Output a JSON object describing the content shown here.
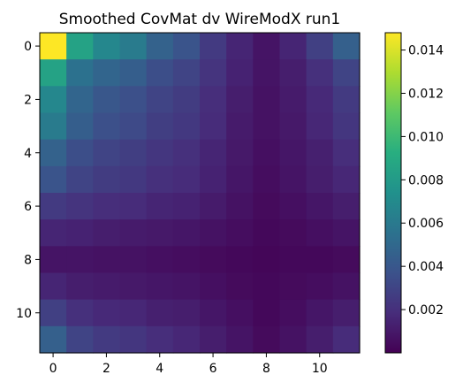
{
  "chart_data": {
    "type": "heatmap",
    "title": "Smoothed CovMat dv WireModX run1",
    "xlabel": "",
    "ylabel": "",
    "x_ticks": [
      "0",
      "2",
      "4",
      "6",
      "8",
      "10"
    ],
    "y_ticks": [
      "0",
      "2",
      "4",
      "6",
      "8",
      "10"
    ],
    "colorbar_ticks": [
      "0.002",
      "0.004",
      "0.006",
      "0.008",
      "0.010",
      "0.012",
      "0.014"
    ],
    "colorbar_range": [
      0.0,
      0.0148
    ],
    "colormap": "viridis",
    "grid": false,
    "rows": 12,
    "cols": 12,
    "values": [
      [
        0.0148,
        0.0085,
        0.0068,
        0.0061,
        0.0046,
        0.0038,
        0.0025,
        0.0015,
        0.0008,
        0.0015,
        0.0028,
        0.0045
      ],
      [
        0.0085,
        0.0055,
        0.0048,
        0.0044,
        0.0035,
        0.003,
        0.0022,
        0.0014,
        0.0008,
        0.0012,
        0.002,
        0.003
      ],
      [
        0.0068,
        0.0048,
        0.004,
        0.0036,
        0.003,
        0.0026,
        0.0019,
        0.0012,
        0.0007,
        0.0011,
        0.0017,
        0.0025
      ],
      [
        0.0061,
        0.0044,
        0.0036,
        0.0033,
        0.0027,
        0.0024,
        0.0018,
        0.0011,
        0.0007,
        0.001,
        0.0016,
        0.0023
      ],
      [
        0.0046,
        0.0035,
        0.003,
        0.0027,
        0.0023,
        0.002,
        0.0015,
        0.001,
        0.0006,
        0.0009,
        0.0013,
        0.0019
      ],
      [
        0.0038,
        0.003,
        0.0026,
        0.0024,
        0.002,
        0.0018,
        0.0014,
        0.0009,
        0.0005,
        0.0008,
        0.0012,
        0.0016
      ],
      [
        0.0025,
        0.0022,
        0.0019,
        0.0018,
        0.0015,
        0.0014,
        0.0011,
        0.0007,
        0.0004,
        0.0006,
        0.0009,
        0.0012
      ],
      [
        0.0015,
        0.0014,
        0.0012,
        0.0011,
        0.001,
        0.0009,
        0.0007,
        0.0005,
        0.0003,
        0.0004,
        0.0006,
        0.0008
      ],
      [
        0.0008,
        0.0008,
        0.0007,
        0.0007,
        0.0006,
        0.0005,
        0.0004,
        0.0003,
        0.0002,
        0.0003,
        0.0003,
        0.0004
      ],
      [
        0.0015,
        0.0012,
        0.0011,
        0.001,
        0.0009,
        0.0008,
        0.0006,
        0.0004,
        0.0003,
        0.0004,
        0.0005,
        0.0007
      ],
      [
        0.0028,
        0.002,
        0.0017,
        0.0016,
        0.0013,
        0.0012,
        0.0009,
        0.0006,
        0.0003,
        0.0005,
        0.0009,
        0.0012
      ],
      [
        0.0045,
        0.003,
        0.0025,
        0.0023,
        0.0019,
        0.0016,
        0.0012,
        0.0008,
        0.0004,
        0.0007,
        0.0012,
        0.0018
      ]
    ]
  }
}
